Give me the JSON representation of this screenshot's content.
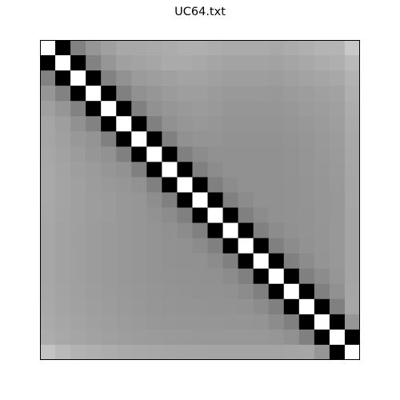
{
  "chart_data": {
    "type": "heatmap",
    "title": "UC64.txt",
    "xlabel": "",
    "ylabel": "",
    "grid": false,
    "axes_ticks": false,
    "colormap": "gray",
    "rows": 21,
    "cols": 21,
    "values": [
      [
        255,
        0,
        130,
        150,
        160,
        168,
        168,
        170,
        172,
        175,
        175,
        172,
        170,
        170,
        170,
        168,
        172,
        175,
        180,
        180,
        200
      ],
      [
        0,
        255,
        0,
        130,
        150,
        160,
        163,
        166,
        170,
        170,
        168,
        165,
        163,
        163,
        163,
        162,
        165,
        168,
        172,
        175,
        185
      ],
      [
        130,
        0,
        255,
        0,
        130,
        145,
        155,
        158,
        160,
        163,
        163,
        160,
        158,
        158,
        158,
        157,
        160,
        163,
        165,
        168,
        178
      ],
      [
        150,
        130,
        0,
        255,
        0,
        128,
        145,
        150,
        155,
        158,
        158,
        155,
        153,
        153,
        153,
        152,
        155,
        157,
        160,
        162,
        175
      ],
      [
        160,
        150,
        130,
        0,
        255,
        0,
        128,
        145,
        150,
        153,
        155,
        153,
        150,
        150,
        150,
        150,
        152,
        155,
        157,
        160,
        172
      ],
      [
        165,
        158,
        145,
        130,
        0,
        255,
        0,
        128,
        145,
        150,
        152,
        150,
        148,
        148,
        148,
        148,
        150,
        152,
        155,
        158,
        170
      ],
      [
        165,
        160,
        152,
        148,
        128,
        0,
        255,
        0,
        128,
        145,
        148,
        148,
        146,
        146,
        146,
        146,
        148,
        150,
        153,
        156,
        168
      ],
      [
        167,
        162,
        156,
        150,
        146,
        128,
        0,
        255,
        0,
        128,
        140,
        145,
        145,
        145,
        145,
        145,
        147,
        149,
        152,
        155,
        167
      ],
      [
        168,
        163,
        158,
        155,
        150,
        146,
        128,
        0,
        255,
        0,
        128,
        140,
        145,
        145,
        145,
        145,
        147,
        149,
        151,
        154,
        166
      ],
      [
        168,
        164,
        160,
        156,
        153,
        150,
        146,
        128,
        0,
        255,
        0,
        128,
        140,
        145,
        145,
        145,
        146,
        148,
        150,
        153,
        165
      ],
      [
        168,
        164,
        160,
        157,
        155,
        152,
        150,
        142,
        128,
        0,
        255,
        0,
        128,
        140,
        145,
        145,
        146,
        148,
        150,
        152,
        165
      ],
      [
        167,
        163,
        160,
        157,
        155,
        152,
        150,
        146,
        140,
        128,
        0,
        255,
        0,
        128,
        140,
        145,
        146,
        147,
        150,
        152,
        164
      ],
      [
        166,
        162,
        159,
        156,
        154,
        152,
        150,
        148,
        145,
        140,
        128,
        0,
        255,
        0,
        128,
        140,
        145,
        147,
        149,
        152,
        164
      ],
      [
        166,
        162,
        159,
        156,
        154,
        152,
        150,
        148,
        146,
        145,
        140,
        128,
        0,
        255,
        0,
        128,
        140,
        146,
        149,
        152,
        164
      ],
      [
        166,
        162,
        159,
        156,
        154,
        152,
        150,
        148,
        146,
        145,
        145,
        140,
        128,
        0,
        255,
        0,
        128,
        140,
        148,
        152,
        164
      ],
      [
        166,
        162,
        159,
        156,
        154,
        152,
        150,
        148,
        147,
        146,
        145,
        145,
        140,
        128,
        0,
        255,
        0,
        128,
        140,
        150,
        164
      ],
      [
        167,
        163,
        160,
        157,
        155,
        153,
        151,
        149,
        148,
        147,
        146,
        146,
        145,
        140,
        128,
        0,
        255,
        0,
        128,
        145,
        165
      ],
      [
        168,
        164,
        161,
        158,
        156,
        154,
        152,
        150,
        149,
        148,
        148,
        147,
        147,
        146,
        140,
        128,
        0,
        255,
        0,
        128,
        166
      ],
      [
        170,
        166,
        163,
        160,
        158,
        156,
        154,
        152,
        151,
        150,
        150,
        150,
        149,
        149,
        148,
        140,
        128,
        0,
        255,
        0,
        150
      ],
      [
        172,
        168,
        165,
        162,
        160,
        158,
        156,
        155,
        154,
        153,
        152,
        152,
        152,
        152,
        152,
        150,
        145,
        128,
        0,
        255,
        0
      ],
      [
        195,
        185,
        178,
        175,
        172,
        170,
        168,
        167,
        166,
        165,
        165,
        164,
        164,
        164,
        164,
        164,
        165,
        166,
        150,
        0,
        255
      ]
    ]
  }
}
